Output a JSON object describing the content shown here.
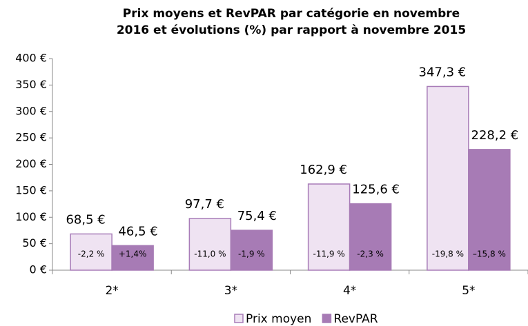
{
  "chart_data": {
    "type": "bar",
    "title": [
      "Prix moyens et RevPAR par catégorie en novembre",
      "2016 et évolutions (%) par rapport à novembre 2015"
    ],
    "categories": [
      "2*",
      "3*",
      "4*",
      "5*"
    ],
    "series": [
      {
        "name": "Prix moyen",
        "color": "#efe3f2",
        "stroke": "#a87cb8",
        "values": [
          68.5,
          97.7,
          162.9,
          347.3
        ],
        "value_labels": [
          "68,5 €",
          "97,7 €",
          "162,9 €",
          "347,3 €"
        ],
        "annotations": [
          "-2,2 %",
          "-11,0 %",
          "-11,9 %",
          "-19,8 %"
        ]
      },
      {
        "name": "RevPAR",
        "color": "#a77bb5",
        "stroke": "#a77bb5",
        "values": [
          46.5,
          75.4,
          125.6,
          228.2
        ],
        "value_labels": [
          "46,5 €",
          "75,4 €",
          "125,6 €",
          "228,2 €"
        ],
        "annotations": [
          "+1,4%",
          "-1,9 %",
          "-2,3 %",
          "–15,8 %"
        ]
      }
    ],
    "ylim": [
      0,
      400
    ],
    "yticks": [
      {
        "value": 0,
        "label": "0 €"
      },
      {
        "value": 50,
        "label": "50 €"
      },
      {
        "value": 100,
        "label": "100 €"
      },
      {
        "value": 150,
        "label": "150 €"
      },
      {
        "value": 200,
        "label": "200 €"
      },
      {
        "value": 250,
        "label": "250 €"
      },
      {
        "value": 300,
        "label": "300 €"
      },
      {
        "value": 350,
        "label": "350 €"
      },
      {
        "value": 400,
        "label": "400 €"
      }
    ],
    "legend": "bottom"
  }
}
